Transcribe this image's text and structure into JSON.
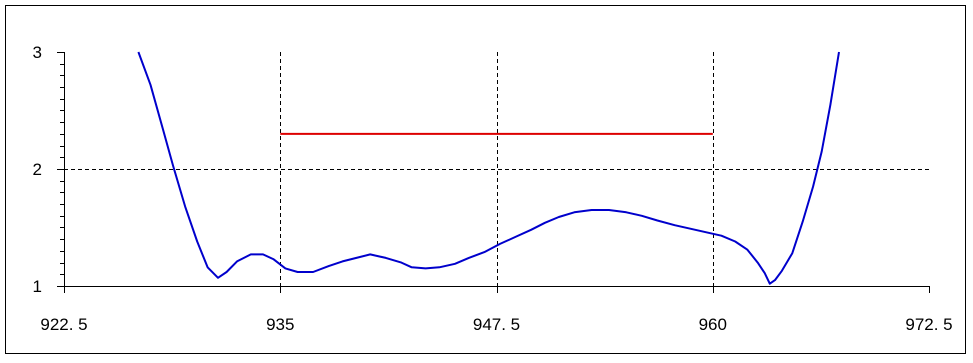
{
  "chart_data": {
    "type": "line",
    "title": "",
    "xlabel": "",
    "ylabel": "",
    "xlim": [
      922.5,
      972.5
    ],
    "ylim": [
      1,
      3
    ],
    "x_ticks": [
      {
        "value": 922.5,
        "label": "922. 5"
      },
      {
        "value": 935,
        "label": "935"
      },
      {
        "value": 947.5,
        "label": "947. 5"
      },
      {
        "value": 960,
        "label": "960"
      },
      {
        "value": 972.5,
        "label": "972. 5"
      }
    ],
    "y_ticks": [
      {
        "value": 1,
        "label": "1"
      },
      {
        "value": 2,
        "label": "2"
      },
      {
        "value": 3,
        "label": "3"
      }
    ],
    "grid": "dashed",
    "series": [
      {
        "color": "#0000cc",
        "points": [
          [
            926.8,
            3.0
          ],
          [
            927.5,
            2.72
          ],
          [
            928.2,
            2.35
          ],
          [
            928.8,
            2.03
          ],
          [
            929.5,
            1.68
          ],
          [
            930.2,
            1.38
          ],
          [
            930.8,
            1.16
          ],
          [
            931.4,
            1.07
          ],
          [
            931.9,
            1.12
          ],
          [
            932.5,
            1.21
          ],
          [
            933.3,
            1.27
          ],
          [
            934.0,
            1.27
          ],
          [
            934.6,
            1.23
          ],
          [
            935.3,
            1.15
          ],
          [
            936.0,
            1.12
          ],
          [
            936.9,
            1.12
          ],
          [
            937.8,
            1.17
          ],
          [
            938.6,
            1.21
          ],
          [
            939.4,
            1.24
          ],
          [
            940.2,
            1.27
          ],
          [
            941.1,
            1.24
          ],
          [
            942.0,
            1.2
          ],
          [
            942.6,
            1.16
          ],
          [
            943.4,
            1.15
          ],
          [
            944.2,
            1.16
          ],
          [
            945.1,
            1.19
          ],
          [
            945.9,
            1.24
          ],
          [
            946.8,
            1.29
          ],
          [
            947.7,
            1.36
          ],
          [
            948.6,
            1.42
          ],
          [
            949.5,
            1.48
          ],
          [
            950.3,
            1.54
          ],
          [
            951.1,
            1.59
          ],
          [
            952.0,
            1.63
          ],
          [
            953.0,
            1.65
          ],
          [
            954.0,
            1.65
          ],
          [
            955.0,
            1.63
          ],
          [
            955.9,
            1.6
          ],
          [
            956.8,
            1.56
          ],
          [
            957.8,
            1.52
          ],
          [
            958.7,
            1.49
          ],
          [
            959.6,
            1.46
          ],
          [
            960.5,
            1.43
          ],
          [
            961.3,
            1.38
          ],
          [
            962.0,
            1.31
          ],
          [
            962.6,
            1.2
          ],
          [
            963.0,
            1.11
          ],
          [
            963.3,
            1.02
          ],
          [
            963.6,
            1.05
          ],
          [
            964.0,
            1.13
          ],
          [
            964.6,
            1.28
          ],
          [
            965.2,
            1.55
          ],
          [
            965.8,
            1.85
          ],
          [
            966.3,
            2.15
          ],
          [
            966.8,
            2.55
          ],
          [
            967.3,
            3.0
          ]
        ]
      },
      {
        "color": "#dd0000",
        "points": [
          [
            935,
            2.3
          ],
          [
            960,
            2.3
          ]
        ]
      }
    ]
  }
}
